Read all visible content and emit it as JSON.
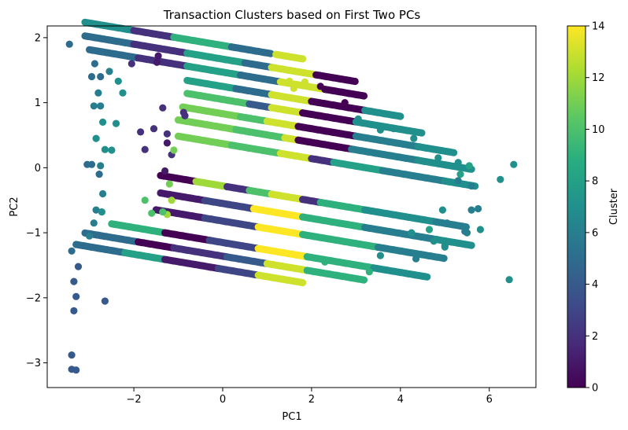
{
  "chart_data": {
    "type": "scatter",
    "title": "Transaction Clusters based on First Two PCs",
    "xlabel": "PC1",
    "ylabel": "PC2",
    "xlim": [
      -3.95,
      7.05
    ],
    "ylim": [
      -3.38,
      2.18
    ],
    "xticks": [
      -2,
      0,
      2,
      4,
      6
    ],
    "yticks": [
      -3,
      -2,
      -1,
      0,
      1,
      2
    ],
    "grid": false,
    "colormap": "viridis",
    "colorbar": {
      "label": "Cluster",
      "min": 0,
      "max": 14,
      "ticks": [
        0,
        2,
        4,
        6,
        8,
        10,
        12,
        14
      ]
    },
    "bands": [
      {
        "y0": 1.88,
        "slope": -0.115,
        "segments": [
          [
            -3.1,
            -2.0,
            7
          ],
          [
            -2.0,
            -1.1,
            2
          ],
          [
            -1.1,
            0.2,
            9
          ],
          [
            0.2,
            1.1,
            5
          ],
          [
            1.2,
            1.8,
            13
          ]
        ]
      },
      {
        "y0": 1.67,
        "slope": -0.115,
        "segments": [
          [
            -3.1,
            -2.0,
            5
          ],
          [
            -2.0,
            -0.8,
            2
          ],
          [
            -0.8,
            0.5,
            8
          ],
          [
            0.5,
            1.1,
            5
          ],
          [
            1.1,
            2.1,
            13
          ],
          [
            2.1,
            3.0,
            0
          ]
        ]
      },
      {
        "y0": 1.47,
        "slope": -0.115,
        "segments": [
          [
            -3.0,
            -1.9,
            5
          ],
          [
            -1.9,
            -0.8,
            2
          ],
          [
            -0.8,
            0.4,
            8
          ],
          [
            0.4,
            1.3,
            5
          ],
          [
            1.3,
            2.3,
            13
          ],
          [
            2.3,
            3.2,
            0
          ]
        ]
      },
      {
        "y0": 1.25,
        "slope": -0.115,
        "segments": [
          [
            -0.8,
            0.3,
            8
          ],
          [
            0.3,
            1.1,
            5
          ],
          [
            1.1,
            2.0,
            13
          ],
          [
            2.0,
            3.2,
            0
          ],
          [
            3.2,
            4.0,
            7
          ]
        ]
      },
      {
        "y0": 1.05,
        "slope": -0.115,
        "segments": [
          [
            -0.8,
            0.6,
            10
          ],
          [
            0.6,
            1.1,
            4
          ],
          [
            1.1,
            1.8,
            13
          ],
          [
            1.8,
            3.0,
            0
          ],
          [
            3.0,
            4.5,
            7
          ]
        ]
      },
      {
        "y0": 0.83,
        "slope": -0.115,
        "segments": [
          [
            -0.9,
            0.4,
            11
          ],
          [
            0.4,
            1.0,
            10
          ],
          [
            1.0,
            1.7,
            13
          ],
          [
            1.7,
            3.0,
            0
          ],
          [
            3.0,
            4.4,
            6
          ],
          [
            4.4,
            5.2,
            7
          ]
        ]
      },
      {
        "y0": 0.62,
        "slope": -0.115,
        "segments": [
          [
            -1.0,
            0.3,
            11
          ],
          [
            0.3,
            1.4,
            10
          ],
          [
            1.4,
            1.7,
            13
          ],
          [
            1.7,
            2.9,
            0
          ],
          [
            2.9,
            4.4,
            6
          ],
          [
            4.4,
            5.6,
            7
          ]
        ]
      },
      {
        "y0": 0.37,
        "slope": -0.115,
        "segments": [
          [
            -1.0,
            0.2,
            11
          ],
          [
            0.2,
            1.3,
            10
          ],
          [
            1.3,
            2.0,
            13
          ],
          [
            2.0,
            2.5,
            2
          ],
          [
            2.5,
            3.6,
            8
          ],
          [
            3.6,
            5.0,
            6
          ],
          [
            5.0,
            5.7,
            7
          ]
        ]
      },
      {
        "y0": -0.28,
        "slope": -0.115,
        "segments": [
          [
            -1.4,
            -0.6,
            0
          ],
          [
            -0.6,
            0.1,
            12
          ],
          [
            0.1,
            0.6,
            2
          ],
          [
            0.6,
            1.1,
            10
          ],
          [
            1.1,
            1.8,
            13
          ],
          [
            1.8,
            2.2,
            2
          ],
          [
            2.2,
            3.2,
            9
          ],
          [
            3.2,
            4.8,
            7
          ],
          [
            4.8,
            5.5,
            6
          ]
        ]
      },
      {
        "y0": -0.55,
        "slope": -0.115,
        "segments": [
          [
            -1.4,
            -0.4,
            1
          ],
          [
            -0.4,
            0.7,
            3
          ],
          [
            0.7,
            1.8,
            14
          ],
          [
            1.8,
            3.2,
            9
          ],
          [
            3.2,
            4.8,
            6
          ],
          [
            4.8,
            5.6,
            7
          ]
        ]
      },
      {
        "y0": -0.82,
        "slope": -0.115,
        "segments": [
          [
            -1.5,
            -0.4,
            1
          ],
          [
            -0.4,
            0.8,
            3
          ],
          [
            0.8,
            1.8,
            14
          ],
          [
            1.8,
            3.5,
            9
          ],
          [
            3.5,
            5.0,
            6
          ]
        ]
      },
      {
        "y0": -1.15,
        "slope": -0.115,
        "segments": [
          [
            -2.5,
            -1.3,
            9
          ],
          [
            -1.3,
            -0.3,
            0
          ],
          [
            -0.3,
            0.8,
            3
          ],
          [
            0.8,
            1.9,
            14
          ],
          [
            1.9,
            3.4,
            9
          ],
          [
            3.4,
            4.6,
            7
          ]
        ]
      },
      {
        "y0": -1.36,
        "slope": -0.115,
        "segments": [
          [
            -3.1,
            -1.9,
            5
          ],
          [
            -1.9,
            -1.1,
            0
          ],
          [
            -1.1,
            0.1,
            2
          ],
          [
            0.1,
            1.0,
            4
          ],
          [
            1.0,
            1.9,
            13
          ],
          [
            1.9,
            3.2,
            9
          ]
        ]
      },
      {
        "y0": -1.56,
        "slope": -0.115,
        "segments": [
          [
            -3.3,
            -2.2,
            5
          ],
          [
            -2.2,
            -1.3,
            8
          ],
          [
            -1.3,
            -0.1,
            1
          ],
          [
            -0.1,
            0.8,
            3
          ],
          [
            0.8,
            1.8,
            13
          ]
        ]
      }
    ],
    "extra_points": [
      [
        -3.45,
        1.9,
        5
      ],
      [
        -2.88,
        1.6,
        5
      ],
      [
        -2.55,
        1.48,
        6
      ],
      [
        -2.35,
        1.33,
        7
      ],
      [
        -2.25,
        1.15,
        7
      ],
      [
        -2.75,
        1.4,
        5
      ],
      [
        -2.95,
        1.4,
        5
      ],
      [
        -2.8,
        1.15,
        6
      ],
      [
        -2.9,
        0.95,
        6
      ],
      [
        -2.75,
        0.95,
        6
      ],
      [
        -2.7,
        0.7,
        7
      ],
      [
        -2.4,
        0.68,
        7
      ],
      [
        -2.85,
        0.45,
        7
      ],
      [
        -2.65,
        0.28,
        7
      ],
      [
        -2.5,
        0.27,
        7
      ],
      [
        -2.95,
        0.05,
        5
      ],
      [
        -3.05,
        0.05,
        5
      ],
      [
        -2.75,
        0.03,
        6
      ],
      [
        -2.78,
        -0.1,
        5
      ],
      [
        -2.7,
        -0.4,
        6
      ],
      [
        -2.85,
        -0.65,
        6
      ],
      [
        -2.72,
        -0.68,
        7
      ],
      [
        -2.9,
        -0.85,
        6
      ],
      [
        -3.0,
        -1.05,
        6
      ],
      [
        -3.4,
        -1.28,
        5
      ],
      [
        -3.25,
        -1.52,
        4
      ],
      [
        -3.35,
        -1.75,
        4
      ],
      [
        -3.3,
        -1.98,
        4
      ],
      [
        -3.35,
        -2.2,
        4
      ],
      [
        -2.65,
        -2.05,
        4
      ],
      [
        -3.4,
        -2.88,
        4
      ],
      [
        -3.4,
        -3.1,
        4
      ],
      [
        -3.3,
        -3.11,
        4
      ],
      [
        -2.05,
        1.6,
        2
      ],
      [
        -1.45,
        1.72,
        1
      ],
      [
        -1.48,
        1.62,
        1
      ],
      [
        -1.85,
        0.55,
        2
      ],
      [
        -1.75,
        0.28,
        2
      ],
      [
        -1.55,
        0.6,
        2
      ],
      [
        -1.35,
        0.92,
        2
      ],
      [
        -0.85,
        0.8,
        2
      ],
      [
        -0.88,
        0.85,
        2
      ],
      [
        -1.25,
        0.52,
        2
      ],
      [
        -1.25,
        0.38,
        1
      ],
      [
        -1.15,
        0.2,
        2
      ],
      [
        -1.3,
        -0.05,
        1
      ],
      [
        -1.1,
        0.27,
        11
      ],
      [
        -1.25,
        -0.72,
        12
      ],
      [
        -1.15,
        -0.5,
        12
      ],
      [
        -1.35,
        -0.68,
        10
      ],
      [
        -1.6,
        -0.7,
        10
      ],
      [
        -1.75,
        -0.5,
        10
      ],
      [
        -1.2,
        -0.25,
        11
      ],
      [
        1.5,
        1.33,
        13
      ],
      [
        1.85,
        1.32,
        13
      ],
      [
        1.6,
        1.22,
        13
      ],
      [
        2.2,
        1.25,
        0
      ],
      [
        2.75,
        1.0,
        0
      ],
      [
        3.05,
        0.75,
        7
      ],
      [
        3.55,
        0.58,
        7
      ],
      [
        3.85,
        0.6,
        7
      ],
      [
        4.3,
        0.45,
        7
      ],
      [
        4.85,
        0.15,
        7
      ],
      [
        5.3,
        0.08,
        7
      ],
      [
        5.55,
        0.03,
        8
      ],
      [
        5.35,
        -0.1,
        8
      ],
      [
        6.55,
        0.05,
        7
      ],
      [
        6.25,
        -0.18,
        7
      ],
      [
        5.3,
        -0.2,
        6
      ],
      [
        5.6,
        -0.28,
        6
      ],
      [
        5.75,
        -0.63,
        6
      ],
      [
        5.8,
        -0.95,
        7
      ],
      [
        5.5,
        -1.0,
        6
      ],
      [
        5.45,
        -0.98,
        6
      ],
      [
        5.0,
        -1.2,
        7
      ],
      [
        5.0,
        -1.22,
        7
      ],
      [
        4.75,
        -1.13,
        7
      ],
      [
        4.65,
        -0.95,
        8
      ],
      [
        4.25,
        -1.0,
        7
      ],
      [
        4.35,
        -1.4,
        6
      ],
      [
        3.55,
        -1.35,
        7
      ],
      [
        3.3,
        -1.6,
        9
      ],
      [
        2.3,
        -1.45,
        9
      ],
      [
        6.45,
        -1.72,
        7
      ],
      [
        5.6,
        -0.65,
        6
      ],
      [
        4.95,
        -0.65,
        7
      ],
      [
        5.05,
        -0.85,
        6
      ]
    ]
  }
}
